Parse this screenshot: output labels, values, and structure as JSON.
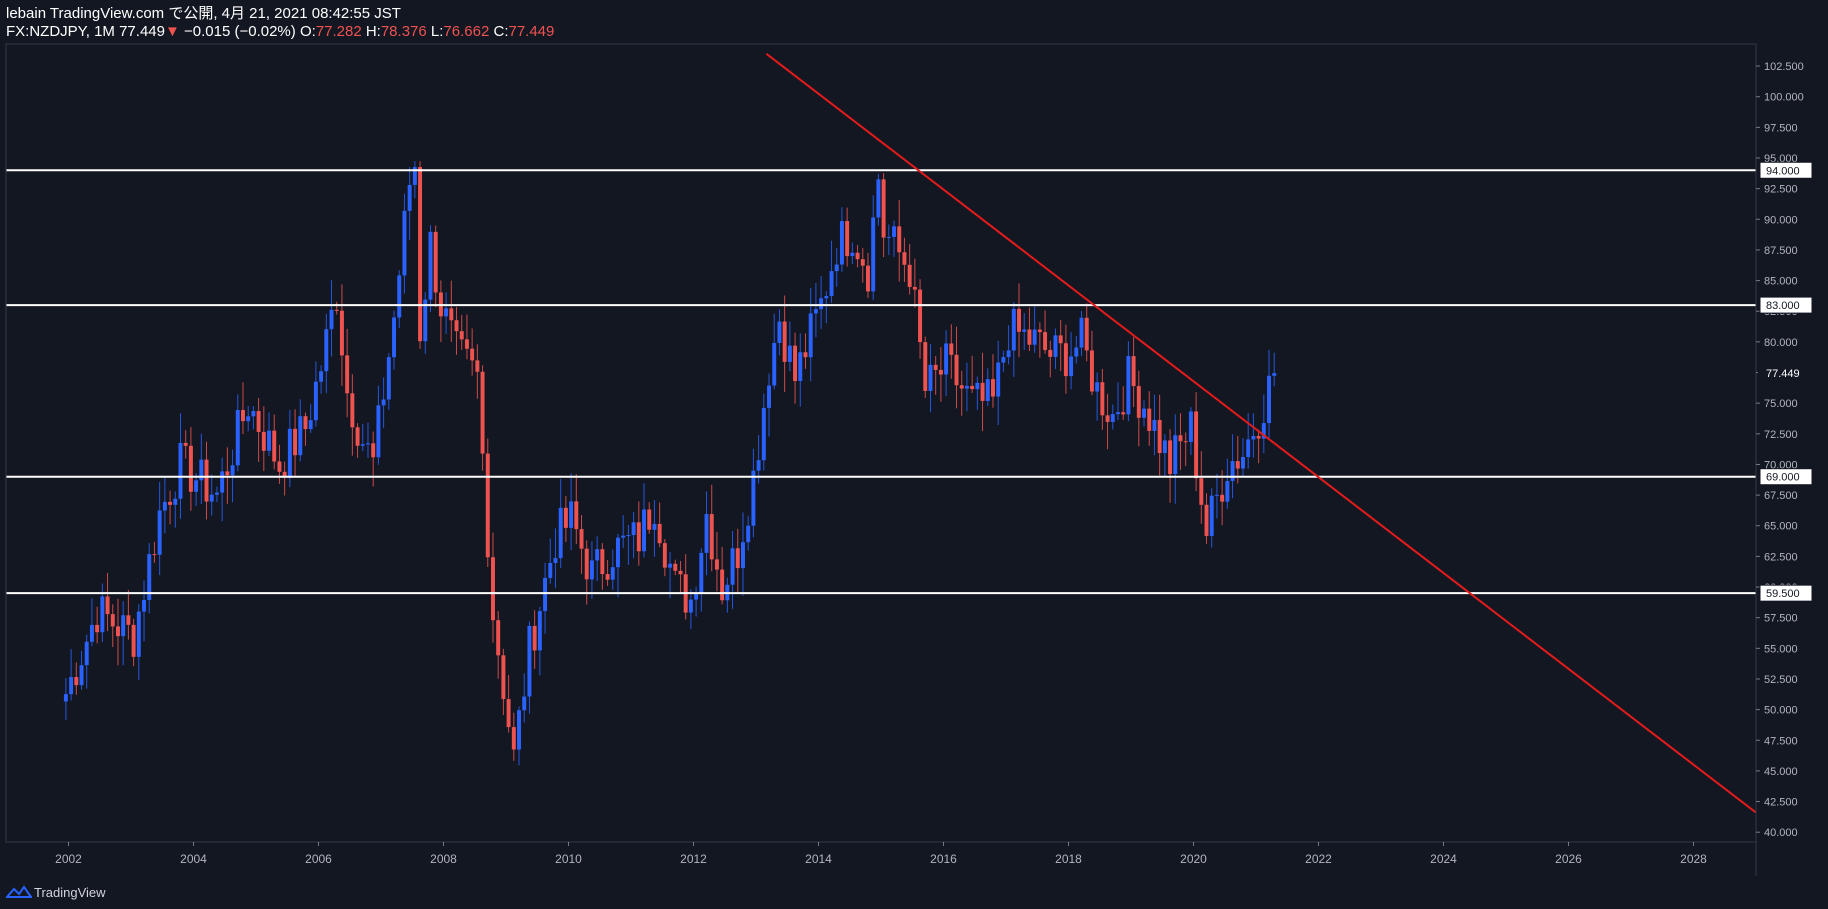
{
  "header": {
    "publish_line": "lebain TradingView.com で公開, 4月 21, 2021 08:42:55 JST",
    "symbol": "FX:NZDJPY, 1M",
    "last": "77.449",
    "change_arrow": "▼",
    "change": "−0.015 (−0.02%)",
    "open_label": "O:",
    "open": "77.282",
    "high_label": "H:",
    "high": "78.376",
    "low_label": "L:",
    "low": "76.662",
    "close_label": "C:",
    "close": "77.449"
  },
  "footer": {
    "brand": "TradingView",
    "logo_icon": "tradingview-logo-icon"
  },
  "colors": {
    "background": "#131722",
    "up": "#2962ff",
    "down": "#ef5350",
    "trendline": "#e31b1b",
    "levels": "#ffffff",
    "axis_text": "#b2b5be"
  },
  "chart_data": {
    "type": "candlestick",
    "interval": "1M",
    "grid": false,
    "ylim": [
      39.2,
      104.3
    ],
    "xlim": [
      "2001-01",
      "2029-01"
    ],
    "x_ticks": [
      "2002",
      "2004",
      "2006",
      "2008",
      "2010",
      "2012",
      "2014",
      "2016",
      "2018",
      "2020",
      "2022",
      "2024",
      "2026",
      "2028"
    ],
    "y_ticks": [
      "40.000",
      "42.500",
      "45.000",
      "47.500",
      "50.000",
      "52.500",
      "55.000",
      "57.500",
      "60.000",
      "62.500",
      "65.000",
      "67.500",
      "70.000",
      "72.500",
      "75.000",
      "77.500",
      "80.000",
      "82.500",
      "85.000",
      "87.500",
      "90.000",
      "92.500",
      "95.000",
      "97.500",
      "100.000",
      "102.500"
    ],
    "last_price_label": "77.449",
    "last_price": 77.449,
    "horizontal_levels": [
      {
        "value": 94.0,
        "label": "94.000"
      },
      {
        "value": 83.0,
        "label": "83.000"
      },
      {
        "value": 69.0,
        "label": "69.000"
      },
      {
        "value": 59.5,
        "label": "59.500"
      }
    ],
    "trendline": {
      "from": [
        "2013-03",
        103.5
      ],
      "to": [
        "2029-01",
        41.6
      ]
    },
    "anchors": [
      [
        "2001-12",
        51.3
      ],
      [
        "2002-06",
        58.0
      ],
      [
        "2003-01",
        56.0
      ],
      [
        "2003-06",
        66.0
      ],
      [
        "2003-10",
        70.0
      ],
      [
        "2004-05",
        67.5
      ],
      [
        "2004-11",
        75.0
      ],
      [
        "2005-05",
        70.0
      ],
      [
        "2005-10",
        73.0
      ],
      [
        "2006-01",
        78.0
      ],
      [
        "2006-04",
        84.0
      ],
      [
        "2006-06",
        76.0
      ],
      [
        "2006-09",
        72.0
      ],
      [
        "2006-11",
        70.0
      ],
      [
        "2007-03",
        82.0
      ],
      [
        "2007-06",
        93.0
      ],
      [
        "2007-07",
        94.5
      ],
      [
        "2007-08",
        81.0
      ],
      [
        "2007-10",
        88.0
      ],
      [
        "2007-12",
        83.0
      ],
      [
        "2008-03",
        79.0
      ],
      [
        "2008-07",
        77.0
      ],
      [
        "2008-10",
        58.0
      ],
      [
        "2008-12",
        52.0
      ],
      [
        "2009-02",
        46.0
      ],
      [
        "2009-05",
        55.0
      ],
      [
        "2009-10",
        64.0
      ],
      [
        "2010-01",
        65.5
      ],
      [
        "2010-05",
        61.0
      ],
      [
        "2010-09",
        63.0
      ],
      [
        "2011-02",
        64.0
      ],
      [
        "2011-05",
        67.0
      ],
      [
        "2011-09",
        60.0
      ],
      [
        "2011-12",
        59.0
      ],
      [
        "2012-03",
        66.0
      ],
      [
        "2012-06",
        60.0
      ],
      [
        "2012-09",
        63.0
      ],
      [
        "2012-12",
        69.0
      ],
      [
        "2013-03",
        78.0
      ],
      [
        "2013-05",
        82.0
      ],
      [
        "2013-08",
        77.0
      ],
      [
        "2014-01",
        83.0
      ],
      [
        "2014-04",
        88.0
      ],
      [
        "2014-07",
        89.0
      ],
      [
        "2014-10",
        86.0
      ],
      [
        "2014-12",
        93.5
      ],
      [
        "2015-01",
        89.0
      ],
      [
        "2015-06",
        86.0
      ],
      [
        "2015-09",
        76.0
      ],
      [
        "2016-01",
        78.0
      ],
      [
        "2016-06",
        75.0
      ],
      [
        "2016-10",
        75.0
      ],
      [
        "2017-01",
        81.0
      ],
      [
        "2017-06",
        80.0
      ],
      [
        "2017-09",
        79.0
      ],
      [
        "2017-12",
        79.0
      ],
      [
        "2018-03",
        80.0
      ],
      [
        "2018-06",
        76.0
      ],
      [
        "2018-09",
        74.0
      ],
      [
        "2018-12",
        77.0
      ],
      [
        "2019-03",
        75.0
      ],
      [
        "2019-08",
        70.0
      ],
      [
        "2019-12",
        73.0
      ],
      [
        "2020-03",
        64.5
      ],
      [
        "2020-07",
        70.0
      ],
      [
        "2020-10",
        71.0
      ],
      [
        "2021-01",
        74.0
      ],
      [
        "2021-04",
        77.4
      ]
    ]
  }
}
